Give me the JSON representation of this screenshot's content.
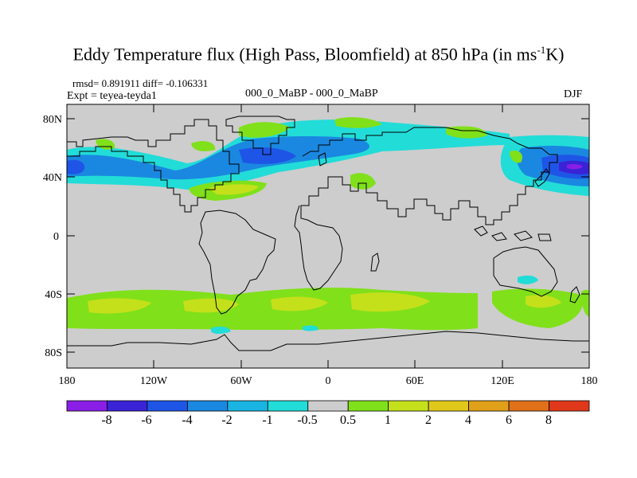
{
  "title": {
    "main": "Eddy Temperature flux (High Pass, Bloomfield) at 850 hPa (in ms",
    "sup": "-1",
    "tail": "K)"
  },
  "stats": "rmsd= 0.891911 diff= -0.106331",
  "experiment": "Expt = teyea-teyda1",
  "period_comparison": "000_0_MaBP - 000_0_MaBP",
  "season": "DJF",
  "axes": {
    "lat_ticks": [
      "80N",
      "40N",
      "0",
      "40S",
      "80S"
    ],
    "lon_ticks": [
      "180",
      "120W",
      "60W",
      "0",
      "60E",
      "120E",
      "180"
    ]
  },
  "colorbar": {
    "labels": [
      "-8",
      "-6",
      "-4",
      "-2",
      "-1",
      "-0.5",
      "0.5",
      "1",
      "2",
      "4",
      "6",
      "8"
    ],
    "colors": [
      "#8a1ee6",
      "#3a23d6",
      "#1e55e6",
      "#1a88e0",
      "#19b4e2",
      "#22dcd8",
      "#cdcdcd",
      "#80e01a",
      "#c4e01a",
      "#e0c81a",
      "#e0a01a",
      "#e0701a",
      "#e0381a"
    ]
  },
  "map_colors": {
    "land_fill": "#cdcdcd",
    "coast_line": "#000000"
  }
}
